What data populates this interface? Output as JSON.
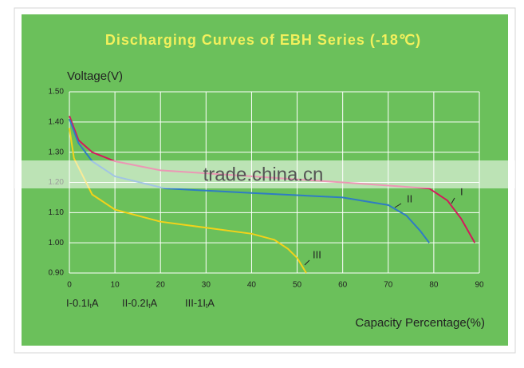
{
  "chart_data": {
    "type": "line",
    "title": "Discharging Curves of EBH Series (-18℃)",
    "y_label": "Voltage(V)",
    "x_label": "Capacity Percentage(%)",
    "watermark": "trade.china.cn",
    "xlim": [
      0,
      90
    ],
    "xticks": [
      0,
      10,
      20,
      30,
      40,
      50,
      60,
      70,
      80,
      90
    ],
    "ylim": [
      0.9,
      1.5
    ],
    "yticks": [
      {
        "value": 0.9,
        "label": "0.90"
      },
      {
        "value": 1.0,
        "label": "1.00"
      },
      {
        "value": 1.1,
        "label": "1.10"
      },
      {
        "value": 1.2,
        "label": "1.20"
      },
      {
        "value": 1.3,
        "label": "1.30"
      },
      {
        "value": 1.4,
        "label": "1.40"
      },
      {
        "value": 1.5,
        "label": "1.50"
      }
    ],
    "grid": true,
    "series": [
      {
        "name": "I-0.1I",
        "subscript": "t",
        "suffix": "A",
        "label": "I",
        "color": "#d4195c",
        "x": [
          0,
          2,
          5,
          10,
          20,
          40,
          60,
          79,
          83,
          86,
          89
        ],
        "values": [
          1.42,
          1.34,
          1.3,
          1.27,
          1.24,
          1.22,
          1.2,
          1.18,
          1.14,
          1.08,
          1.0
        ]
      },
      {
        "name": "II-0.2I",
        "subscript": "t",
        "suffix": "A",
        "label": "II",
        "color": "#2f7cc4",
        "x": [
          0,
          2,
          5,
          10,
          21,
          40,
          60,
          70,
          74,
          77,
          79
        ],
        "values": [
          1.41,
          1.33,
          1.27,
          1.22,
          1.18,
          1.165,
          1.15,
          1.125,
          1.09,
          1.04,
          1.0
        ]
      },
      {
        "name": "III-1I",
        "subscript": "t",
        "suffix": "A",
        "label": "III",
        "color": "#f2d21a",
        "x": [
          0,
          1,
          3,
          5,
          10,
          20,
          30,
          40,
          45,
          48,
          50,
          52
        ],
        "values": [
          1.38,
          1.28,
          1.22,
          1.16,
          1.11,
          1.07,
          1.05,
          1.03,
          1.01,
          0.98,
          0.95,
          0.9
        ]
      }
    ]
  }
}
